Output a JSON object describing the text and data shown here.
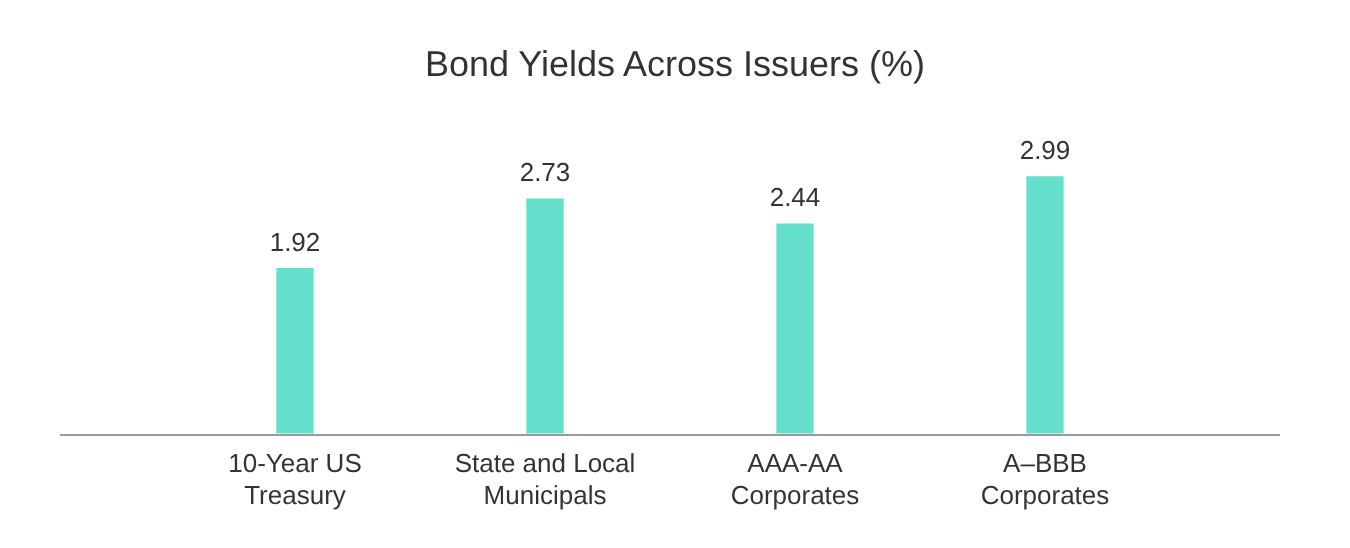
{
  "chart_data": {
    "type": "bar",
    "title": "Bond Yields Across Issuers (%)",
    "categories": [
      "10-Year US Treasury",
      "State and Local Municipals",
      "AAA-AA Corporates",
      "A–BBB Corporates"
    ],
    "values": [
      1.92,
      2.73,
      2.44,
      2.99
    ],
    "color": "#64e0cc",
    "data_labels": true,
    "grid": false,
    "legend": false,
    "tick_labels": "x"
  }
}
